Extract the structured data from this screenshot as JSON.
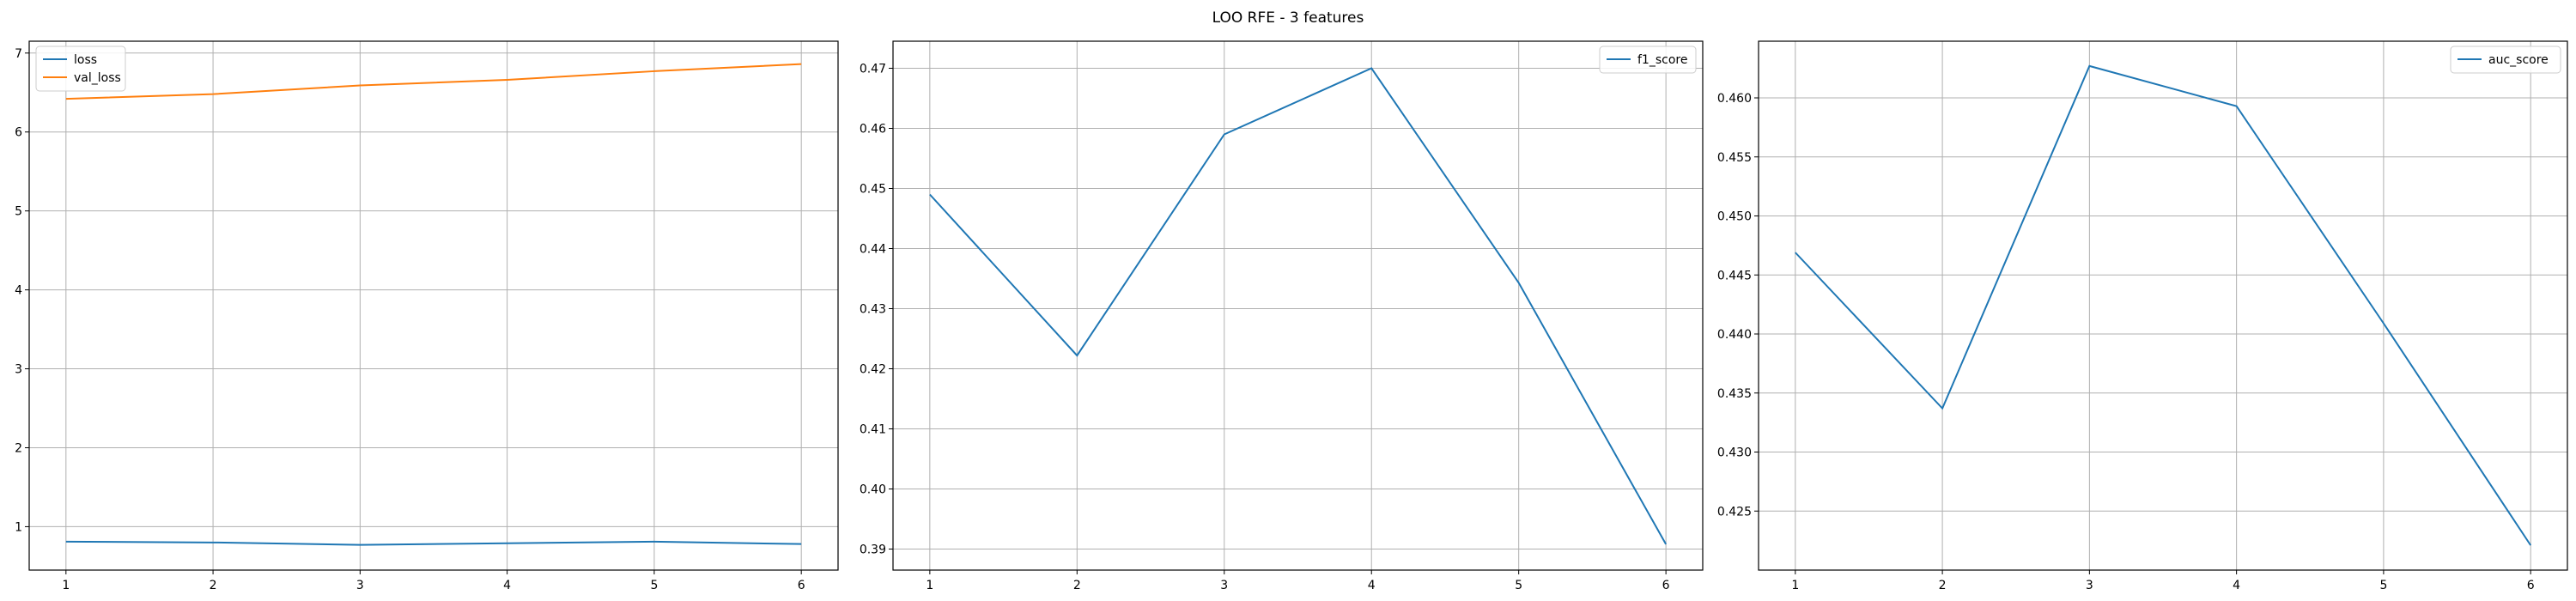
{
  "figure": {
    "title": "LOO RFE - 3 features"
  },
  "chart_data": [
    {
      "type": "line",
      "x": [
        1,
        2,
        3,
        4,
        5,
        6
      ],
      "ylim": [
        0.45,
        7.15
      ],
      "yticks": [
        1,
        2,
        3,
        4,
        5,
        6,
        7
      ],
      "ytick_labels": [
        "1",
        "2",
        "3",
        "4",
        "5",
        "6",
        "7"
      ],
      "grid": true,
      "legend_position": "top-left",
      "series": [
        {
          "name": "loss",
          "color": "#1f77b4",
          "values": [
            0.81,
            0.8,
            0.77,
            0.79,
            0.81,
            0.78
          ]
        },
        {
          "name": "val_loss",
          "color": "#ff7f0e",
          "values": [
            6.42,
            6.48,
            6.59,
            6.66,
            6.77,
            6.86
          ]
        }
      ]
    },
    {
      "type": "line",
      "x": [
        1,
        2,
        3,
        4,
        5,
        6
      ],
      "ylim": [
        0.3865,
        0.4745
      ],
      "yticks": [
        0.39,
        0.4,
        0.41,
        0.42,
        0.43,
        0.44,
        0.45,
        0.46,
        0.47
      ],
      "ytick_labels": [
        "0.39",
        "0.40",
        "0.41",
        "0.42",
        "0.43",
        "0.44",
        "0.45",
        "0.46",
        "0.47"
      ],
      "grid": true,
      "legend_position": "top-right",
      "series": [
        {
          "name": "f1_score",
          "color": "#1f77b4",
          "values": [
            0.449,
            0.4222,
            0.459,
            0.47,
            0.4343,
            0.3908
          ]
        }
      ]
    },
    {
      "type": "line",
      "x": [
        1,
        2,
        3,
        4,
        5,
        6
      ],
      "ylim": [
        0.42,
        0.4648
      ],
      "yticks": [
        0.425,
        0.43,
        0.435,
        0.44,
        0.445,
        0.45,
        0.455,
        0.46
      ],
      "ytick_labels": [
        "0.425",
        "0.430",
        "0.435",
        "0.440",
        "0.445",
        "0.450",
        "0.455",
        "0.460"
      ],
      "grid": true,
      "legend_position": "top-right",
      "series": [
        {
          "name": "auc_score",
          "color": "#1f77b4",
          "values": [
            0.4469,
            0.4337,
            0.4627,
            0.4593,
            0.4409,
            0.4221
          ]
        }
      ]
    }
  ]
}
